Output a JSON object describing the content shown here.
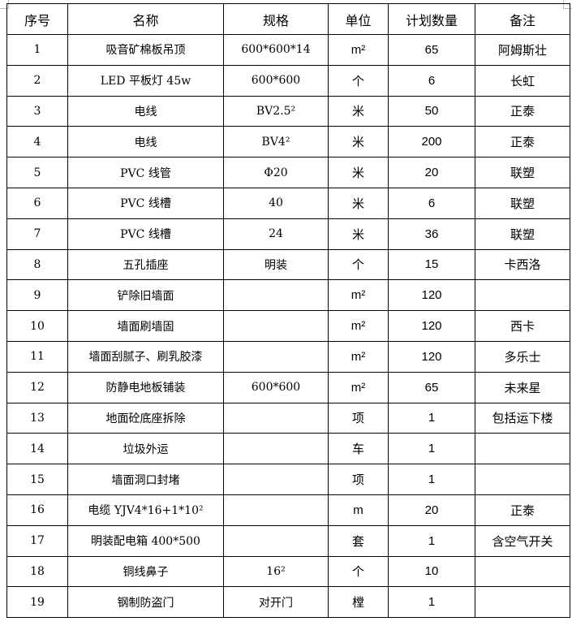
{
  "table": {
    "headers": [
      "序号",
      "名称",
      "规格",
      "单位",
      "计划数量",
      "备注"
    ],
    "rows": [
      [
        "1",
        "吸音矿棉板吊顶",
        "600*600*14",
        "m²",
        "65",
        "阿姆斯壮"
      ],
      [
        "2",
        "LED 平板灯 45w",
        "600*600",
        "个",
        "6",
        "长虹"
      ],
      [
        "3",
        "电线",
        "BV2.5²",
        "米",
        "50",
        "正泰"
      ],
      [
        "4",
        "电线",
        "BV4²",
        "米",
        "200",
        "正泰"
      ],
      [
        "5",
        "PVC 线管",
        "Φ20",
        "米",
        "20",
        "联塑"
      ],
      [
        "6",
        "PVC 线槽",
        "40",
        "米",
        "6",
        "联塑"
      ],
      [
        "7",
        "PVC 线槽",
        "24",
        "米",
        "36",
        "联塑"
      ],
      [
        "8",
        "五孔插座",
        "明装",
        "个",
        "15",
        "卡西洛"
      ],
      [
        "9",
        "铲除旧墙面",
        "",
        "m²",
        "120",
        ""
      ],
      [
        "10",
        "墙面刷墙固",
        "",
        "m²",
        "120",
        "西卡"
      ],
      [
        "11",
        "墙面刮腻子、刷乳胶漆",
        "",
        "m²",
        "120",
        "多乐士"
      ],
      [
        "12",
        "防静电地板铺装",
        "600*600",
        "m²",
        "65",
        "未来星"
      ],
      [
        "13",
        "地面砼底座拆除",
        "",
        "项",
        "1",
        "包括运下楼"
      ],
      [
        "14",
        "垃圾外运",
        "",
        "车",
        "1",
        ""
      ],
      [
        "15",
        "墙面洞口封堵",
        "",
        "项",
        "1",
        ""
      ],
      [
        "16",
        "电缆 YJV4*16+1*10²",
        "",
        "m",
        "20",
        "正泰"
      ],
      [
        "17",
        "明装配电箱 400*500",
        "",
        "套",
        "1",
        "含空气开关"
      ],
      [
        "18",
        "铜线鼻子",
        "16²",
        "个",
        "10",
        ""
      ],
      [
        "19",
        "钢制防盗门",
        "对开门",
        "樘",
        "1",
        ""
      ]
    ]
  }
}
